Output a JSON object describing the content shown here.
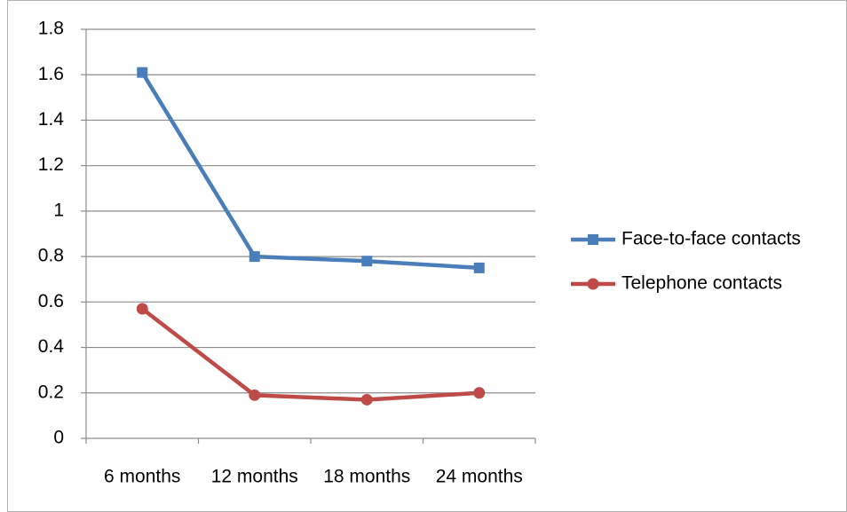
{
  "chart_data": {
    "type": "line",
    "categories": [
      "6 months",
      "12 months",
      "18 months",
      "24 months"
    ],
    "series": [
      {
        "name": "Face-to-face contacts",
        "color": "#4a7ebb",
        "marker": "square",
        "values": [
          1.61,
          0.8,
          0.78,
          0.75
        ]
      },
      {
        "name": "Telephone contacts",
        "color": "#be4b48",
        "marker": "circle",
        "values": [
          0.57,
          0.19,
          0.17,
          0.2
        ]
      }
    ],
    "ylim": [
      0,
      1.8
    ],
    "yticks": [
      0,
      0.2,
      0.4,
      0.6,
      0.8,
      1,
      1.2,
      1.4,
      1.6,
      1.8
    ],
    "grid": true,
    "legend": "right"
  }
}
